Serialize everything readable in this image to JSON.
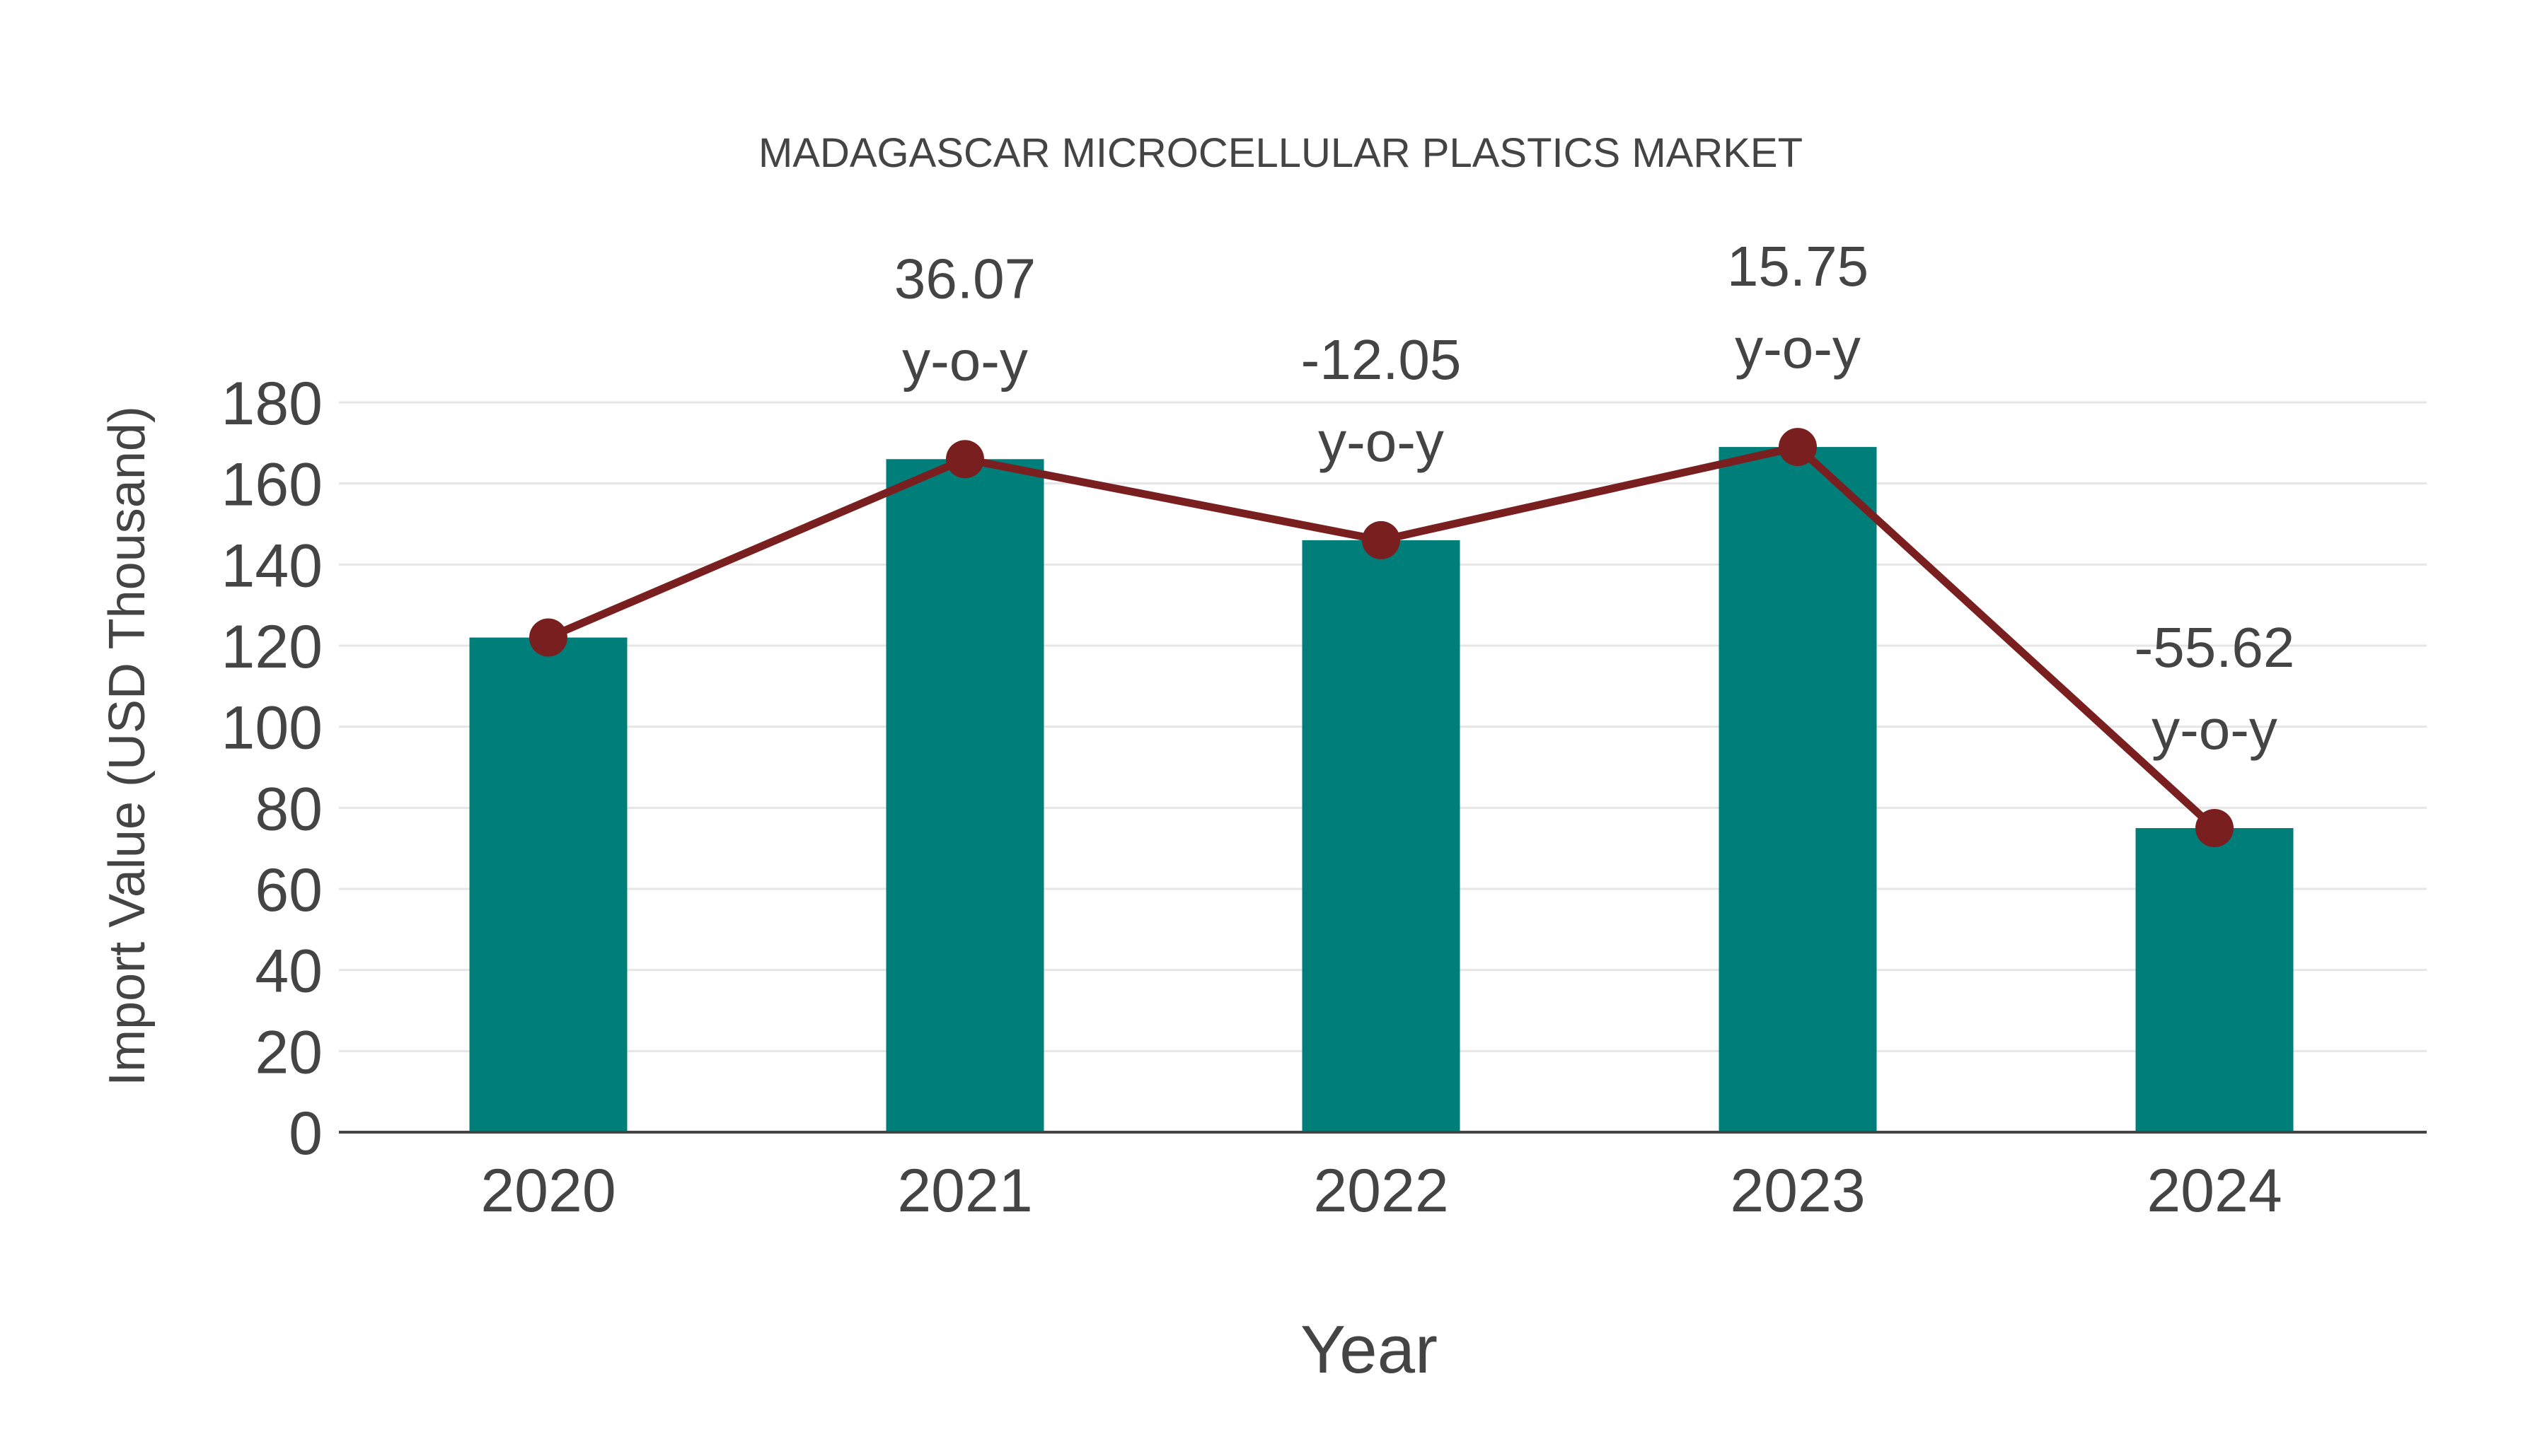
{
  "chart_data": {
    "type": "bar",
    "title": "MADAGASCAR MICROCELLULAR PLASTICS MARKET",
    "xlabel": "Year",
    "ylabel": "Import Value (USD Thousand)",
    "categories": [
      "2020",
      "2021",
      "2022",
      "2023",
      "2024"
    ],
    "series": [
      {
        "name": "Import Value",
        "type": "bar",
        "color": "#007f7a",
        "values": [
          122,
          166,
          146,
          169,
          75
        ]
      },
      {
        "name": "Import Value Trend",
        "type": "line",
        "color": "#7a1f1f",
        "values": [
          122,
          166,
          146,
          169,
          75
        ]
      }
    ],
    "annotations": [
      {
        "category": "2021",
        "value": "36.07",
        "suffix": "y-o-y"
      },
      {
        "category": "2022",
        "value": "-12.05",
        "suffix": "y-o-y"
      },
      {
        "category": "2023",
        "value": "15.75",
        "suffix": "y-o-y"
      },
      {
        "category": "2024",
        "value": "-55.62",
        "suffix": "y-o-y"
      }
    ],
    "ylim": [
      0,
      180
    ],
    "yticks": [
      0,
      20,
      40,
      60,
      80,
      100,
      120,
      140,
      160,
      180
    ],
    "grid": true,
    "legend": "none"
  },
  "colors": {
    "bar": "#007f7a",
    "line": "#7a1f1f",
    "text": "#444444",
    "grid": "#e6e6e6"
  }
}
